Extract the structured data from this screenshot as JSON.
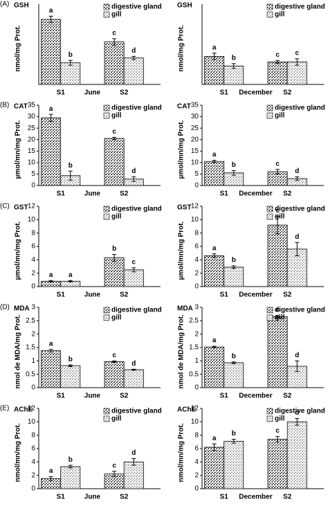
{
  "chart_data": [
    {
      "type": "bar",
      "label": "(A)",
      "title": "GSH",
      "ylabel": "nmol/mg Prot.",
      "xlabel": "June",
      "categories": [
        "S1",
        "S2"
      ],
      "ylim": [
        0,
        100
      ],
      "series": [
        {
          "name": "digestive gland",
          "color": "#222222",
          "values": [
            81,
            53
          ],
          "errors": [
            4,
            4
          ],
          "letters": [
            "a",
            "c"
          ]
        },
        {
          "name": "gill",
          "color": "#9a9a9a",
          "values": [
            27,
            33
          ],
          "errors": [
            3,
            2
          ],
          "letters": [
            "b",
            "d"
          ]
        }
      ]
    },
    {
      "type": "bar",
      "title": "GSH",
      "ylabel": "nmol/mg Prot.",
      "xlabel": "December",
      "categories": [
        "S1",
        "S2"
      ],
      "ylim": [
        0,
        100
      ],
      "series": [
        {
          "name": "digestive gland",
          "color": "#222222",
          "values": [
            35,
            28
          ],
          "errors": [
            4,
            2
          ],
          "letters": [
            "a",
            "c"
          ]
        },
        {
          "name": "gill",
          "color": "#9a9a9a",
          "values": [
            23,
            28
          ],
          "errors": [
            3,
            4
          ],
          "letters": [
            "b",
            "c"
          ]
        }
      ]
    },
    {
      "type": "bar",
      "label": "(B)",
      "title": "CAT",
      "ylabel": "µmol/mn/mg Prot.",
      "xlabel": "June",
      "categories": [
        "S1",
        "S2"
      ],
      "ylim": [
        0,
        35
      ],
      "yticks": [
        0,
        5,
        10,
        15,
        20,
        25,
        30,
        35
      ],
      "series": [
        {
          "name": "digestive gland",
          "color": "#222222",
          "values": [
            29.5,
            20.5
          ],
          "errors": [
            1.5,
            0.5
          ],
          "letters": [
            "a",
            "c"
          ]
        },
        {
          "name": "gill",
          "color": "#9a9a9a",
          "values": [
            4.3,
            2.8
          ],
          "errors": [
            2,
            1
          ],
          "letters": [
            "b",
            "d"
          ]
        }
      ]
    },
    {
      "type": "bar",
      "title": "CAT",
      "ylabel": "µmol/mn/mg Prot.",
      "xlabel": "December",
      "categories": [
        "S1",
        "S2"
      ],
      "ylim": [
        0,
        35
      ],
      "yticks": [
        0,
        5,
        10,
        15,
        20,
        25,
        30,
        35
      ],
      "series": [
        {
          "name": "digestive gland",
          "color": "#222222",
          "values": [
            10.5,
            6
          ],
          "errors": [
            0.5,
            1
          ],
          "letters": [
            "a",
            "c"
          ]
        },
        {
          "name": "gill",
          "color": "#9a9a9a",
          "values": [
            5.5,
            3
          ],
          "errors": [
            1,
            0.8
          ],
          "letters": [
            "b",
            "d"
          ]
        }
      ]
    },
    {
      "type": "bar",
      "label": "(C)",
      "title": "GST",
      "ylabel": "µmol/mn/mg Prot.",
      "xlabel": "June",
      "categories": [
        "S1",
        "S2"
      ],
      "ylim": [
        0,
        12
      ],
      "yticks": [
        0,
        2,
        4,
        6,
        8,
        10,
        12
      ],
      "series": [
        {
          "name": "digestive gland",
          "color": "#222222",
          "values": [
            0.8,
            4.3
          ],
          "errors": [
            0.1,
            0.5
          ],
          "letters": [
            "a",
            "b"
          ]
        },
        {
          "name": "gill",
          "color": "#9a9a9a",
          "values": [
            0.8,
            2.5
          ],
          "errors": [
            0.1,
            0.3
          ],
          "letters": [
            "a",
            "c"
          ]
        }
      ]
    },
    {
      "type": "bar",
      "title": "GST",
      "ylabel": "µmol/mn/mg Prot.",
      "xlabel": "December",
      "categories": [
        "S1",
        "S2"
      ],
      "ylim": [
        0,
        12
      ],
      "yticks": [
        0,
        2,
        4,
        6,
        8,
        10,
        12
      ],
      "series": [
        {
          "name": "digestive gland",
          "color": "#222222",
          "values": [
            4.6,
            9.2
          ],
          "errors": [
            0.3,
            1.3
          ],
          "letters": [
            "a",
            "c"
          ]
        },
        {
          "name": "gill",
          "color": "#9a9a9a",
          "values": [
            2.9,
            5.6
          ],
          "errors": [
            0.2,
            1.0
          ],
          "letters": [
            "b",
            "d"
          ]
        }
      ]
    },
    {
      "type": "bar",
      "label": "(D)",
      "title": "MDA",
      "ylabel": "nmol de MDA/mg Prot.",
      "xlabel": "June",
      "categories": [
        "S1",
        "S2"
      ],
      "ylim": [
        0,
        3
      ],
      "yticks": [
        0,
        0.5,
        1,
        1.5,
        2,
        2.5,
        3
      ],
      "series": [
        {
          "name": "digestive gland",
          "color": "#222222",
          "values": [
            1.38,
            0.97
          ],
          "errors": [
            0.05,
            0.03
          ],
          "letters": [
            "a",
            "c"
          ]
        },
        {
          "name": "gill",
          "color": "#9a9a9a",
          "values": [
            0.82,
            0.67
          ],
          "errors": [
            0.03,
            0.02
          ],
          "letters": [
            "b",
            "d"
          ]
        }
      ]
    },
    {
      "type": "bar",
      "title": "MDA",
      "ylabel": "nmol de MDA/mg Prot.",
      "xlabel": "December",
      "categories": [
        "S1",
        "S2"
      ],
      "ylim": [
        0,
        3
      ],
      "yticks": [
        0,
        0.5,
        1,
        1.5,
        2,
        2.5,
        3
      ],
      "series": [
        {
          "name": "digestive gland",
          "color": "#222222",
          "values": [
            1.52,
            2.65
          ],
          "errors": [
            0.03,
            0.05
          ],
          "letters": [
            "a",
            "c"
          ]
        },
        {
          "name": "gill",
          "color": "#9a9a9a",
          "values": [
            0.93,
            0.8
          ],
          "errors": [
            0.03,
            0.2
          ],
          "letters": [
            "b",
            "d"
          ]
        }
      ]
    },
    {
      "type": "bar",
      "label": "(E)",
      "title": "AChE",
      "ylabel": "nmol/mn/mg Prot.",
      "xlabel": "June",
      "categories": [
        "S1",
        "S2"
      ],
      "ylim": [
        0,
        12
      ],
      "yticks": [
        0,
        2,
        4,
        6,
        8,
        10,
        12
      ],
      "series": [
        {
          "name": "digestive gland",
          "color": "#222222",
          "values": [
            1.5,
            2.2
          ],
          "errors": [
            0.3,
            0.4
          ],
          "letters": [
            "a",
            "c"
          ]
        },
        {
          "name": "gill",
          "color": "#9a9a9a",
          "values": [
            3.3,
            4.0
          ],
          "errors": [
            0.2,
            0.5
          ],
          "letters": [
            "b",
            "d"
          ]
        }
      ]
    },
    {
      "type": "bar",
      "title": "AChE",
      "ylabel": "nmol/mn/mg Prot.",
      "xlabel": "December",
      "categories": [
        "S1",
        "S2"
      ],
      "ylim": [
        0,
        12
      ],
      "yticks": [
        0,
        2,
        4,
        6,
        8,
        10,
        12
      ],
      "series": [
        {
          "name": "digestive gland",
          "color": "#222222",
          "values": [
            6.2,
            7.4
          ],
          "errors": [
            0.5,
            0.4
          ],
          "letters": [
            "a",
            "c"
          ]
        },
        {
          "name": "gill",
          "color": "#9a9a9a",
          "values": [
            7.1,
            10.0
          ],
          "errors": [
            0.3,
            0.5
          ],
          "letters": [
            "b",
            "d"
          ]
        }
      ]
    }
  ]
}
